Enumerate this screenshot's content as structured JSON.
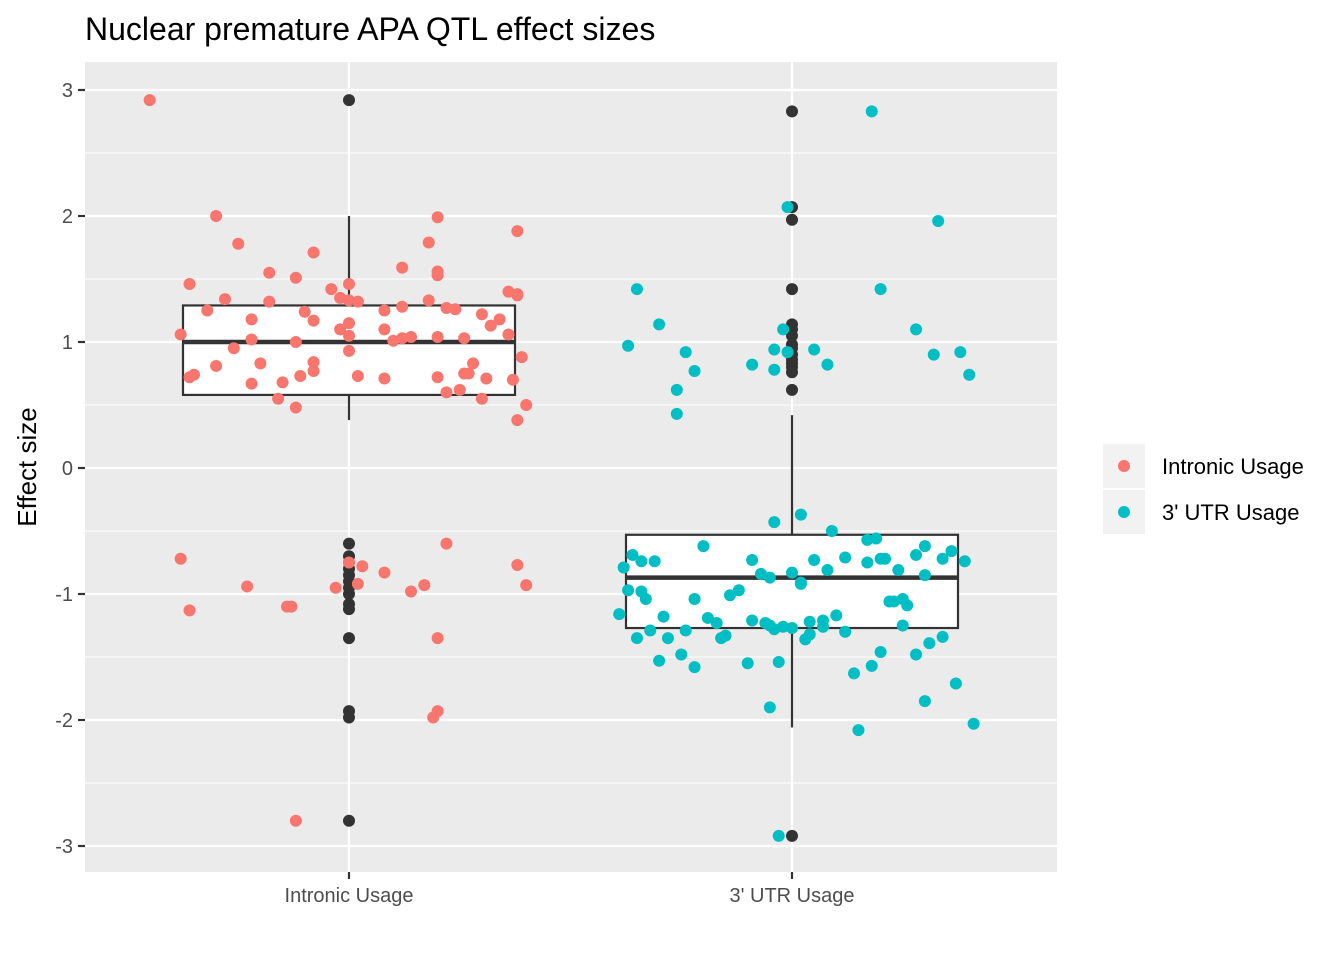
{
  "chart_data": {
    "type": "boxplot",
    "title": "Nuclear premature APA QTL effect sizes",
    "xlabel": "",
    "ylabel": "Effect size",
    "ylim": [
      -3.2,
      3.2
    ],
    "y_ticks": [
      -3,
      -2,
      -1,
      0,
      1,
      2,
      3
    ],
    "categories": [
      "Intronic Usage",
      "3' UTR Usage"
    ],
    "grid": true,
    "legend_position": "right",
    "legend": [
      {
        "label": "Intronic Usage",
        "color": "#F8766D"
      },
      {
        "label": "3' UTR Usage",
        "color": "#00BFC4"
      }
    ],
    "boxes": [
      {
        "category": "Intronic Usage",
        "q1": 0.58,
        "median": 1.0,
        "q3": 1.29,
        "whisker_low": 0.38,
        "whisker_high": 2.0,
        "outliers": [
          2.92,
          -0.6,
          -0.7,
          -0.75,
          -0.8,
          -0.85,
          -0.9,
          -0.95,
          -1.0,
          -1.08,
          -1.12,
          -1.35,
          -1.93,
          -1.98,
          -2.8
        ]
      },
      {
        "category": "3' UTR Usage",
        "q1": -1.27,
        "median": -0.87,
        "q3": -0.53,
        "whisker_low": -2.06,
        "whisker_high": 0.42,
        "outliers": [
          2.83,
          2.07,
          1.97,
          1.42,
          1.14,
          1.1,
          1.05,
          0.98,
          0.95,
          0.9,
          0.86,
          0.83,
          0.8,
          0.76,
          0.62,
          -2.92
        ]
      }
    ],
    "series": [
      {
        "name": "Intronic Usage",
        "color": "#F8766D",
        "points": [
          [
            -0.45,
            2.92
          ],
          [
            -0.3,
            2.0
          ],
          [
            -0.25,
            1.78
          ],
          [
            -0.18,
            1.55
          ],
          [
            -0.12,
            1.51
          ],
          [
            -0.08,
            1.71
          ],
          [
            0.0,
            1.46
          ],
          [
            0.12,
            1.59
          ],
          [
            0.2,
            1.56
          ],
          [
            0.2,
            1.53
          ],
          [
            0.2,
            1.99
          ],
          [
            0.18,
            1.79
          ],
          [
            0.38,
            1.88
          ],
          [
            -0.36,
            1.46
          ],
          [
            -0.32,
            1.25
          ],
          [
            -0.28,
            1.34
          ],
          [
            -0.22,
            1.18
          ],
          [
            -0.18,
            1.32
          ],
          [
            -0.1,
            1.24
          ],
          [
            -0.08,
            1.17
          ],
          [
            -0.04,
            1.42
          ],
          [
            -0.02,
            1.35
          ],
          [
            0.0,
            1.33
          ],
          [
            0.02,
            1.32
          ],
          [
            0.08,
            1.25
          ],
          [
            0.12,
            1.28
          ],
          [
            0.18,
            1.33
          ],
          [
            0.22,
            1.27
          ],
          [
            0.24,
            1.26
          ],
          [
            0.3,
            1.22
          ],
          [
            0.32,
            1.13
          ],
          [
            0.34,
            1.18
          ],
          [
            0.36,
            1.4
          ],
          [
            0.38,
            1.38
          ],
          [
            0.38,
            1.37
          ],
          [
            -0.38,
            1.06
          ],
          [
            -0.26,
            0.95
          ],
          [
            -0.22,
            1.02
          ],
          [
            -0.12,
            1.0
          ],
          [
            -0.02,
            1.1
          ],
          [
            0.0,
            1.15
          ],
          [
            0.0,
            1.05
          ],
          [
            0.08,
            1.1
          ],
          [
            0.1,
            1.01
          ],
          [
            0.12,
            1.03
          ],
          [
            0.14,
            1.04
          ],
          [
            0.2,
            1.04
          ],
          [
            0.26,
            1.03
          ],
          [
            0.36,
            1.06
          ],
          [
            -0.36,
            0.72
          ],
          [
            -0.35,
            0.74
          ],
          [
            -0.3,
            0.81
          ],
          [
            -0.22,
            0.67
          ],
          [
            -0.2,
            0.83
          ],
          [
            -0.16,
            0.55
          ],
          [
            -0.15,
            0.68
          ],
          [
            -0.12,
            0.48
          ],
          [
            -0.11,
            0.73
          ],
          [
            -0.08,
            0.77
          ],
          [
            -0.08,
            0.84
          ],
          [
            0.0,
            0.93
          ],
          [
            0.02,
            0.73
          ],
          [
            0.08,
            0.71
          ],
          [
            0.2,
            0.72
          ],
          [
            0.22,
            0.6
          ],
          [
            0.25,
            0.62
          ],
          [
            0.26,
            0.75
          ],
          [
            0.27,
            0.75
          ],
          [
            0.28,
            0.83
          ],
          [
            0.3,
            0.55
          ],
          [
            0.31,
            0.71
          ],
          [
            0.37,
            0.7
          ],
          [
            0.39,
            0.88
          ],
          [
            0.4,
            0.5
          ],
          [
            0.38,
            0.38
          ],
          [
            -0.38,
            -0.72
          ],
          [
            -0.36,
            -1.13
          ],
          [
            -0.23,
            -0.94
          ],
          [
            -0.14,
            -1.1
          ],
          [
            -0.13,
            -1.1
          ],
          [
            -0.03,
            -0.95
          ],
          [
            0.0,
            -0.75
          ],
          [
            0.02,
            -0.92
          ],
          [
            0.03,
            -0.78
          ],
          [
            0.08,
            -0.83
          ],
          [
            0.14,
            -0.98
          ],
          [
            0.17,
            -0.93
          ],
          [
            0.2,
            -1.35
          ],
          [
            0.22,
            -0.6
          ],
          [
            0.38,
            -0.77
          ],
          [
            0.4,
            -0.93
          ],
          [
            0.2,
            -1.93
          ],
          [
            0.19,
            -1.98
          ],
          [
            -0.12,
            -2.8
          ]
        ]
      },
      {
        "name": "3' UTR Usage",
        "color": "#00BFC4",
        "points": [
          [
            0.18,
            2.83
          ],
          [
            -0.01,
            2.07
          ],
          [
            0.33,
            1.96
          ],
          [
            -0.35,
            1.42
          ],
          [
            0.2,
            1.42
          ],
          [
            -0.3,
            1.14
          ],
          [
            0.28,
            1.1
          ],
          [
            -0.02,
            1.1
          ],
          [
            -0.37,
            0.97
          ],
          [
            -0.24,
            0.92
          ],
          [
            -0.04,
            0.94
          ],
          [
            0.05,
            0.94
          ],
          [
            0.32,
            0.9
          ],
          [
            0.38,
            0.92
          ],
          [
            -0.09,
            0.82
          ],
          [
            -0.04,
            0.78
          ],
          [
            -0.01,
            0.92
          ],
          [
            0.08,
            0.82
          ],
          [
            -0.22,
            0.77
          ],
          [
            -0.26,
            0.62
          ],
          [
            -0.26,
            0.43
          ],
          [
            0.4,
            0.74
          ],
          [
            -0.04,
            -0.43
          ],
          [
            0.02,
            -0.37
          ],
          [
            0.09,
            -0.5
          ],
          [
            -0.38,
            -0.79
          ],
          [
            -0.36,
            -0.69
          ],
          [
            -0.34,
            -0.74
          ],
          [
            -0.31,
            -0.74
          ],
          [
            -0.2,
            -0.62
          ],
          [
            -0.09,
            -0.73
          ],
          [
            -0.07,
            -0.84
          ],
          [
            -0.05,
            -0.87
          ],
          [
            0.0,
            -0.83
          ],
          [
            0.02,
            -0.91
          ],
          [
            0.05,
            -0.73
          ],
          [
            0.08,
            -0.81
          ],
          [
            0.12,
            -0.71
          ],
          [
            0.17,
            -0.57
          ],
          [
            0.19,
            -0.56
          ],
          [
            0.17,
            -0.75
          ],
          [
            0.2,
            -0.72
          ],
          [
            0.21,
            -0.72
          ],
          [
            0.24,
            -0.81
          ],
          [
            0.28,
            -0.69
          ],
          [
            0.3,
            -0.62
          ],
          [
            0.3,
            -0.85
          ],
          [
            0.34,
            -0.72
          ],
          [
            0.36,
            -0.66
          ],
          [
            0.39,
            -0.74
          ],
          [
            -0.37,
            -0.97
          ],
          [
            -0.34,
            -0.98
          ],
          [
            -0.33,
            -1.04
          ],
          [
            -0.29,
            -1.18
          ],
          [
            -0.24,
            -1.29
          ],
          [
            -0.22,
            -1.04
          ],
          [
            -0.19,
            -1.19
          ],
          [
            -0.17,
            -1.23
          ],
          [
            -0.14,
            -1.01
          ],
          [
            -0.12,
            -0.97
          ],
          [
            -0.09,
            -1.21
          ],
          [
            -0.06,
            -1.23
          ],
          [
            -0.02,
            -1.26
          ],
          [
            0.02,
            -0.92
          ],
          [
            0.04,
            -1.22
          ],
          [
            0.07,
            -1.21
          ],
          [
            0.1,
            -1.17
          ],
          [
            0.22,
            -1.06
          ],
          [
            0.23,
            -1.06
          ],
          [
            0.25,
            -1.04
          ],
          [
            0.26,
            -1.09
          ],
          [
            0.25,
            -1.25
          ],
          [
            -0.39,
            -1.16
          ],
          [
            -0.35,
            -1.35
          ],
          [
            -0.32,
            -1.29
          ],
          [
            -0.3,
            -1.53
          ],
          [
            -0.28,
            -1.35
          ],
          [
            -0.25,
            -1.48
          ],
          [
            -0.22,
            -1.58
          ],
          [
            -0.16,
            -1.35
          ],
          [
            -0.15,
            -1.33
          ],
          [
            -0.1,
            -1.55
          ],
          [
            -0.05,
            -1.25
          ],
          [
            -0.04,
            -1.28
          ],
          [
            -0.03,
            -1.54
          ],
          [
            0.0,
            -1.27
          ],
          [
            0.03,
            -1.36
          ],
          [
            0.04,
            -1.32
          ],
          [
            0.07,
            -1.26
          ],
          [
            0.12,
            -1.3
          ],
          [
            0.14,
            -1.63
          ],
          [
            0.18,
            -1.57
          ],
          [
            0.2,
            -1.46
          ],
          [
            0.28,
            -1.48
          ],
          [
            0.31,
            -1.39
          ],
          [
            0.34,
            -1.34
          ],
          [
            0.37,
            -1.71
          ],
          [
            0.41,
            -2.03
          ],
          [
            0.3,
            -1.85
          ],
          [
            0.15,
            -2.08
          ],
          [
            -0.05,
            -1.9
          ],
          [
            -0.03,
            -2.92
          ]
        ]
      }
    ]
  }
}
